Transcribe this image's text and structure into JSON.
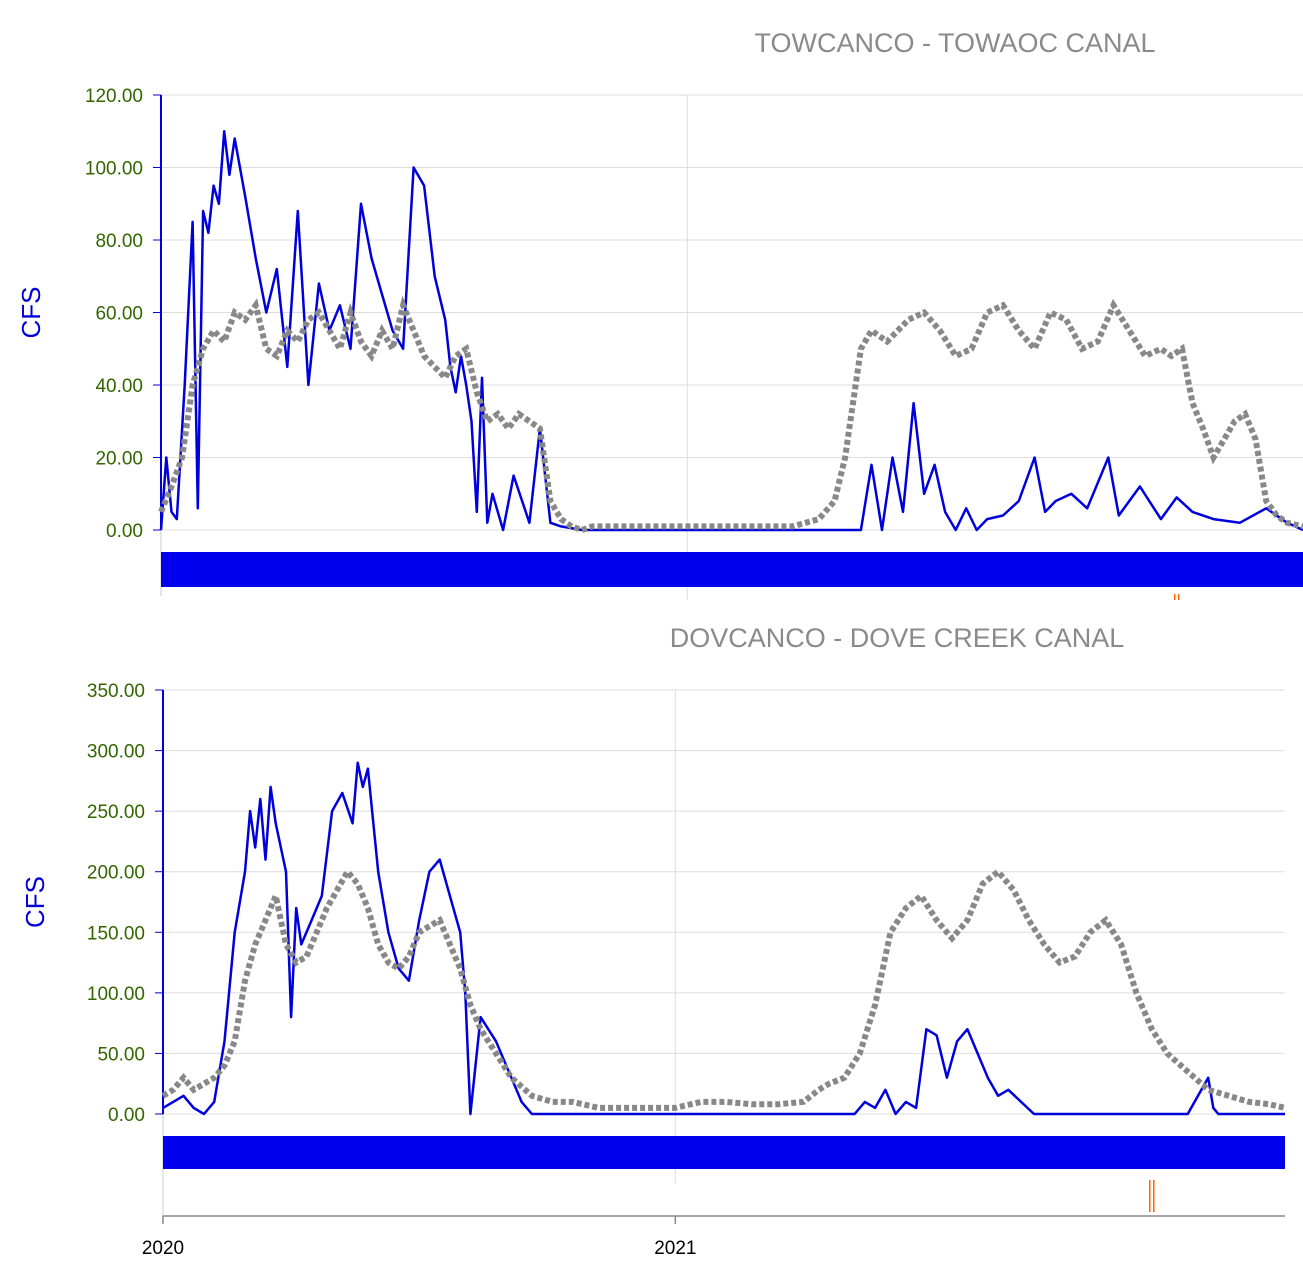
{
  "chart_data": [
    {
      "type": "line",
      "title": "TOWCANCO - TOWAOC CANAL",
      "ylabel": "CFS",
      "ylim": [
        0,
        120
      ],
      "yticks": [
        "0.00",
        "20.00",
        "40.00",
        "60.00",
        "80.00",
        "100.00",
        "120.00"
      ],
      "xlim": [
        2020.0,
        2022.17
      ],
      "grid": true,
      "colors": {
        "series_a": "#0000dd",
        "series_b": "#888888",
        "band": "#0000ee"
      },
      "series": [
        {
          "style": "solid",
          "x": [
            2020.0,
            2020.01,
            2020.02,
            2020.03,
            2020.045,
            2020.06,
            2020.07,
            2020.08,
            2020.09,
            2020.1,
            2020.11,
            2020.12,
            2020.13,
            2020.14,
            2020.16,
            2020.18,
            2020.2,
            2020.22,
            2020.24,
            2020.26,
            2020.28,
            2020.3,
            2020.32,
            2020.34,
            2020.36,
            2020.38,
            2020.4,
            2020.42,
            2020.44,
            2020.46,
            2020.48,
            2020.5,
            2020.52,
            2020.54,
            2020.55,
            2020.56,
            2020.57,
            2020.58,
            2020.59,
            2020.6,
            2020.61,
            2020.62,
            2020.63,
            2020.65,
            2020.67,
            2020.7,
            2020.72,
            2020.74,
            2020.76,
            2020.8,
            2020.9,
            2021.0,
            2021.1,
            2021.2,
            2021.3,
            2021.33,
            2021.35,
            2021.37,
            2021.39,
            2021.41,
            2021.43,
            2021.45,
            2021.47,
            2021.49,
            2021.51,
            2021.53,
            2021.55,
            2021.57,
            2021.6,
            2021.63,
            2021.66,
            2021.68,
            2021.7,
            2021.73,
            2021.76,
            2021.8,
            2021.82,
            2021.84,
            2021.86,
            2021.9,
            2021.93,
            2021.96,
            2022.0,
            2022.05,
            2022.1,
            2022.14,
            2022.17
          ],
          "y": [
            0,
            20,
            5,
            3,
            40,
            85,
            6,
            88,
            82,
            95,
            90,
            110,
            98,
            108,
            92,
            75,
            60,
            72,
            45,
            88,
            40,
            68,
            55,
            62,
            50,
            90,
            75,
            65,
            55,
            50,
            100,
            95,
            70,
            58,
            45,
            38,
            48,
            40,
            30,
            5,
            42,
            2,
            10,
            0,
            15,
            2,
            28,
            2,
            1,
            0,
            0,
            0,
            0,
            0,
            0,
            0,
            18,
            0,
            20,
            5,
            35,
            10,
            18,
            5,
            0,
            6,
            0,
            3,
            4,
            8,
            20,
            5,
            8,
            10,
            6,
            20,
            4,
            8,
            12,
            3,
            9,
            5,
            3,
            2,
            6,
            2,
            0
          ]
        },
        {
          "style": "dotted",
          "x": [
            2020.0,
            2020.02,
            2020.04,
            2020.06,
            2020.08,
            2020.1,
            2020.12,
            2020.14,
            2020.16,
            2020.18,
            2020.2,
            2020.22,
            2020.24,
            2020.26,
            2020.28,
            2020.3,
            2020.32,
            2020.34,
            2020.36,
            2020.38,
            2020.4,
            2020.42,
            2020.44,
            2020.46,
            2020.48,
            2020.5,
            2020.52,
            2020.54,
            2020.56,
            2020.58,
            2020.6,
            2020.62,
            2020.64,
            2020.66,
            2020.68,
            2020.7,
            2020.72,
            2020.74,
            2020.76,
            2020.78,
            2020.8,
            2020.82,
            2020.85,
            2020.9,
            2021.0,
            2021.1,
            2021.2,
            2021.25,
            2021.28,
            2021.3,
            2021.33,
            2021.35,
            2021.38,
            2021.42,
            2021.45,
            2021.48,
            2021.51,
            2021.54,
            2021.57,
            2021.6,
            2021.63,
            2021.66,
            2021.69,
            2021.72,
            2021.75,
            2021.78,
            2021.81,
            2021.84,
            2021.87,
            2021.9,
            2021.92,
            2021.94,
            2021.96,
            2021.98,
            2022.0,
            2022.02,
            2022.04,
            2022.06,
            2022.08,
            2022.1,
            2022.12,
            2022.14,
            2022.17
          ],
          "y": [
            5,
            12,
            20,
            40,
            50,
            55,
            52,
            60,
            58,
            62,
            50,
            48,
            55,
            52,
            58,
            60,
            55,
            50,
            60,
            52,
            48,
            55,
            50,
            62,
            55,
            48,
            45,
            42,
            48,
            50,
            38,
            30,
            32,
            28,
            32,
            30,
            28,
            8,
            3,
            1,
            0,
            1,
            1,
            1,
            1,
            1,
            1,
            3,
            8,
            20,
            50,
            55,
            52,
            58,
            60,
            55,
            48,
            50,
            60,
            62,
            55,
            50,
            60,
            58,
            50,
            52,
            62,
            55,
            48,
            50,
            48,
            50,
            35,
            28,
            20,
            25,
            30,
            32,
            25,
            8,
            4,
            2,
            1
          ]
        }
      ],
      "markers": [
        {
          "x": 2021.93,
          "color": "#ff6600"
        }
      ]
    },
    {
      "type": "line",
      "title": "DOVCANCO - DOVE CREEK CANAL",
      "ylabel": "CFS",
      "ylim": [
        0,
        350
      ],
      "yticks": [
        "0.00",
        "50.00",
        "100.00",
        "150.00",
        "200.00",
        "250.00",
        "300.00",
        "350.00"
      ],
      "xlim": [
        2020.0,
        2022.19
      ],
      "xtick_labels": [
        "2020",
        "2021"
      ],
      "xtick_values": [
        2020.0,
        2021.0
      ],
      "grid": true,
      "colors": {
        "series_a": "#0000dd",
        "series_b": "#888888",
        "band": "#0000ee"
      },
      "series": [
        {
          "style": "solid",
          "x": [
            2020.0,
            2020.02,
            2020.04,
            2020.06,
            2020.08,
            2020.1,
            2020.12,
            2020.14,
            2020.16,
            2020.17,
            2020.18,
            2020.19,
            2020.2,
            2020.21,
            2020.22,
            2020.24,
            2020.25,
            2020.26,
            2020.27,
            2020.29,
            2020.31,
            2020.33,
            2020.35,
            2020.37,
            2020.38,
            2020.39,
            2020.4,
            2020.42,
            2020.44,
            2020.46,
            2020.48,
            2020.5,
            2020.52,
            2020.54,
            2020.56,
            2020.58,
            2020.59,
            2020.6,
            2020.62,
            2020.65,
            2020.68,
            2020.7,
            2020.72,
            2020.8,
            2020.9,
            2021.0,
            2021.1,
            2021.2,
            2021.3,
            2021.35,
            2021.37,
            2021.39,
            2021.41,
            2021.43,
            2021.45,
            2021.47,
            2021.49,
            2021.51,
            2021.53,
            2021.55,
            2021.57,
            2021.59,
            2021.61,
            2021.63,
            2021.65,
            2021.7,
            2021.8,
            2021.9,
            2022.0,
            2022.04,
            2022.05,
            2022.06,
            2022.1,
            2022.19
          ],
          "y": [
            5,
            10,
            15,
            5,
            0,
            10,
            60,
            150,
            200,
            250,
            220,
            260,
            210,
            270,
            240,
            200,
            80,
            170,
            140,
            160,
            180,
            250,
            265,
            240,
            290,
            270,
            285,
            200,
            150,
            120,
            110,
            160,
            200,
            210,
            180,
            150,
            100,
            0,
            80,
            60,
            30,
            10,
            0,
            0,
            0,
            0,
            0,
            0,
            0,
            0,
            10,
            5,
            20,
            0,
            10,
            5,
            70,
            65,
            30,
            60,
            70,
            50,
            30,
            15,
            20,
            0,
            0,
            0,
            0,
            30,
            5,
            0,
            0,
            0
          ]
        },
        {
          "style": "dotted",
          "x": [
            2020.0,
            2020.02,
            2020.04,
            2020.06,
            2020.08,
            2020.1,
            2020.12,
            2020.14,
            2020.16,
            2020.18,
            2020.2,
            2020.22,
            2020.24,
            2020.26,
            2020.28,
            2020.3,
            2020.32,
            2020.34,
            2020.36,
            2020.38,
            2020.4,
            2020.42,
            2020.44,
            2020.46,
            2020.48,
            2020.5,
            2020.52,
            2020.54,
            2020.56,
            2020.58,
            2020.6,
            2020.62,
            2020.65,
            2020.68,
            2020.72,
            2020.76,
            2020.8,
            2020.85,
            2020.9,
            2020.95,
            2021.0,
            2021.05,
            2021.1,
            2021.15,
            2021.2,
            2021.25,
            2021.28,
            2021.3,
            2021.33,
            2021.36,
            2021.39,
            2021.42,
            2021.45,
            2021.48,
            2021.51,
            2021.54,
            2021.57,
            2021.6,
            2021.63,
            2021.66,
            2021.69,
            2021.72,
            2021.75,
            2021.78,
            2021.81,
            2021.84,
            2021.87,
            2021.9,
            2021.93,
            2021.96,
            2022.0,
            2022.04,
            2022.08,
            2022.12,
            2022.16,
            2022.19
          ],
          "y": [
            15,
            20,
            30,
            20,
            25,
            30,
            40,
            60,
            110,
            140,
            160,
            180,
            140,
            125,
            130,
            150,
            170,
            185,
            200,
            190,
            170,
            140,
            125,
            120,
            130,
            150,
            155,
            160,
            140,
            120,
            90,
            70,
            50,
            30,
            15,
            10,
            10,
            5,
            5,
            5,
            5,
            10,
            10,
            8,
            8,
            10,
            20,
            25,
            30,
            50,
            90,
            150,
            170,
            180,
            160,
            145,
            160,
            190,
            200,
            185,
            160,
            140,
            125,
            130,
            150,
            160,
            140,
            100,
            70,
            50,
            35,
            20,
            15,
            10,
            8,
            5
          ]
        }
      ],
      "markers": [
        {
          "x": 2021.93,
          "color": "#ff6600"
        }
      ]
    }
  ]
}
